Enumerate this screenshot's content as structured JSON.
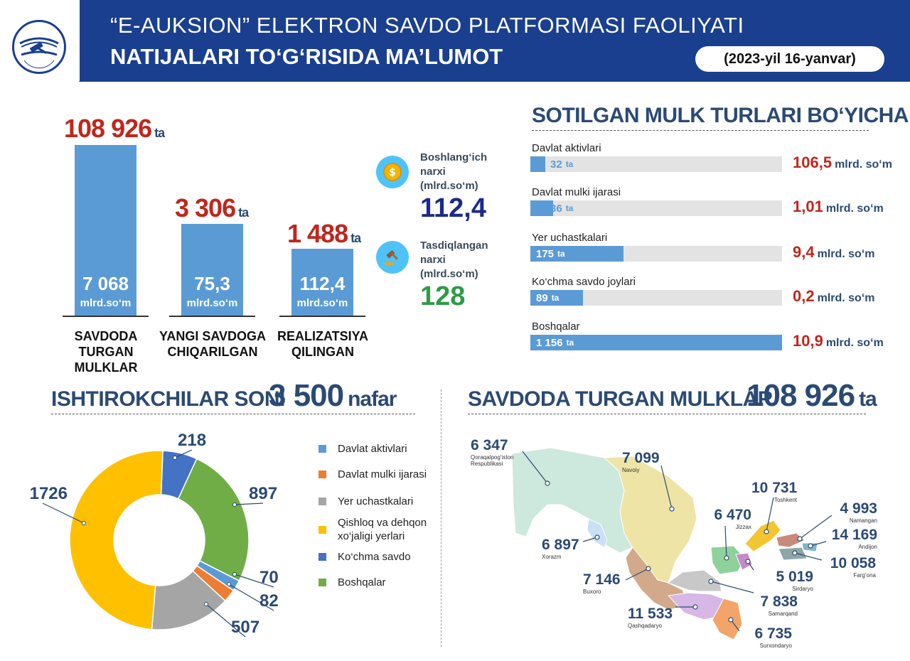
{
  "header": {
    "title_line1": "“E-AUKSION” ELEKTRON SAVDO PLATFORMASI FAOLIYATI",
    "title_line2": "NATIJALARI TO‘G‘RISIDA MA’LUMOT",
    "date": "(2023-yil 16-yanvar)",
    "logo_text": "E-AUKSION"
  },
  "summary": {
    "bars": [
      {
        "count": "108 926",
        "ta": "ta",
        "value": "7 068",
        "unit": "mlrd.so‘m",
        "label1": "SAVDODA",
        "label2": "TURGAN MULKLAR"
      },
      {
        "count": "3 306",
        "ta": "ta",
        "value": "75,3",
        "unit": "mlrd.so‘m",
        "label1": "YANGI SAVDOGA",
        "label2": "CHIQARILGAN"
      },
      {
        "count": "1 488",
        "ta": "ta",
        "value": "112,4",
        "unit": "mlrd.so‘m",
        "label1": "REALIZATSIYA",
        "label2": "QILINGAN"
      }
    ],
    "prices": {
      "initial_label1": "Boshlang‘ich",
      "initial_label2": "narxi",
      "initial_label3": "(mlrd.so‘m)",
      "initial_value": "112,4",
      "approved_label1": "Tasdiqlangan",
      "approved_label2": "narxi",
      "approved_label3": "(mlrd.so‘m)",
      "approved_value": "128"
    }
  },
  "property_types": {
    "title": "SOTILGAN MULK TURLARI BO‘YICHA",
    "items": [
      {
        "name": "Davlat aktivlari",
        "count": "32",
        "ta": "ta",
        "amount": "106,5",
        "unit": "mlrd. so‘m",
        "share": 0.06
      },
      {
        "name": "Davlat mulki ijarasi",
        "count": "36",
        "ta": "ta",
        "amount": "1,01",
        "unit": "mlrd. so‘m",
        "share": 0.09
      },
      {
        "name": "Yer uchastkalari",
        "count": "175",
        "ta": "ta",
        "amount": "9,4",
        "unit": "mlrd. so‘m",
        "share": 0.37
      },
      {
        "name": "Ko‘chma savdo joylari",
        "count": "89",
        "ta": "ta",
        "amount": "0,2",
        "unit": "mlrd. so‘m",
        "share": 0.21
      },
      {
        "name": "Boshqalar",
        "count": "1 156",
        "ta": "ta",
        "amount": "10,9",
        "unit": "mlrd. so‘m",
        "share": 1.0
      }
    ]
  },
  "participants": {
    "title": "ISHTIROKCHILAR SONI",
    "total": "3 500",
    "unit": "nafar",
    "legend": [
      {
        "name": "Davlat aktivlari",
        "color": "#5b9bd5"
      },
      {
        "name": "Davlat mulki ijarasi",
        "color": "#ed7d31"
      },
      {
        "name": "Yer uchastkalari",
        "color": "#a5a5a5"
      },
      {
        "name": "Qishloq va dehqon",
        "name2": "xo‘jaligi yerlari",
        "color": "#ffc000"
      },
      {
        "name": "Ko‘chma savdo",
        "color": "#4472c4"
      },
      {
        "name": "Boshqalar",
        "color": "#70ad47"
      }
    ],
    "slices": [
      {
        "label": "218",
        "value": 218,
        "color": "#4472c4"
      },
      {
        "label": "897",
        "value": 897,
        "color": "#70ad47"
      },
      {
        "label": "70",
        "value": 70,
        "color": "#5b9bd5"
      },
      {
        "label": "82",
        "value": 82,
        "color": "#ed7d31"
      },
      {
        "label": "507",
        "value": 507,
        "color": "#a5a5a5"
      },
      {
        "label": "1726",
        "value": 1726,
        "color": "#ffc000"
      }
    ]
  },
  "regions": {
    "title": "SAVDODA TURGAN MULKLAR",
    "total": "108 926",
    "unit": "ta",
    "items": [
      {
        "num": "6 347",
        "name": "Qoraqalpog‘iston",
        "name2": "Respublikasi"
      },
      {
        "num": "7 099",
        "name": "Navoiy"
      },
      {
        "num": "10 731",
        "name": "Toshkent"
      },
      {
        "num": "6 470",
        "name": "Jizzax"
      },
      {
        "num": "4 993",
        "name": "Namangan"
      },
      {
        "num": "14 169",
        "name": "Andijon"
      },
      {
        "num": "10 058",
        "name": "Farg‘ona"
      },
      {
        "num": "6 897",
        "name": "Xorazm"
      },
      {
        "num": "5 019",
        "name": "Sirdaryo"
      },
      {
        "num": "7 146",
        "name": "Buxoro"
      },
      {
        "num": "7 838",
        "name": "Samarqand"
      },
      {
        "num": "11 533",
        "name": "Qashqadaryo"
      },
      {
        "num": "6 735",
        "name": "Surxondaryo"
      }
    ]
  }
}
